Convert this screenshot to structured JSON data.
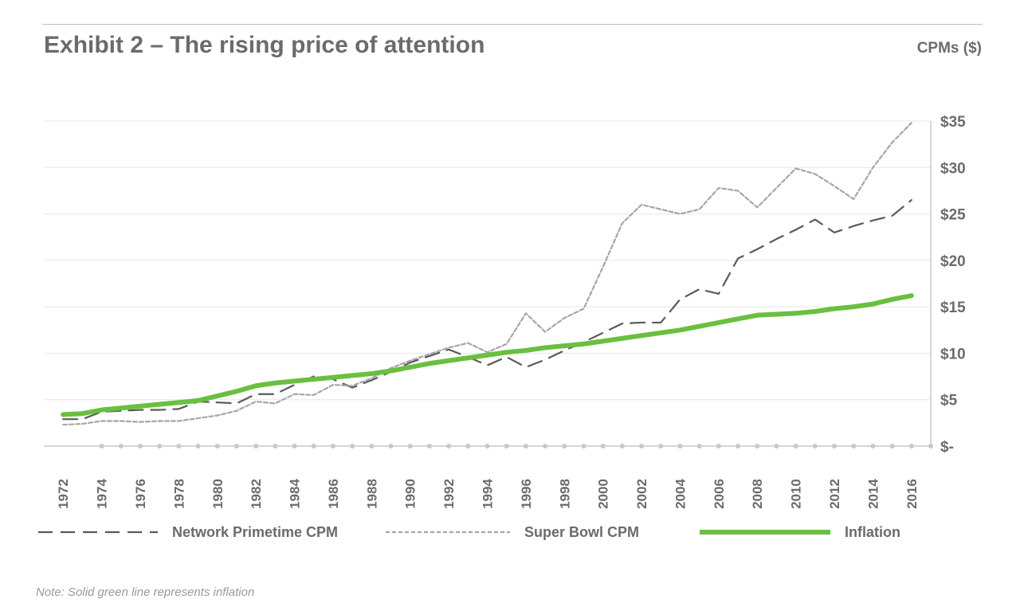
{
  "header": {
    "title": "Exhibit 2 – The rising price of attention",
    "unit": "CPMs ($)"
  },
  "note": "Note: Solid green line represents inflation",
  "chart_data": {
    "type": "line",
    "title": "Exhibit 2 – The rising price of attention",
    "ylabel": "CPMs ($)",
    "xlabel": "",
    "ylim": [
      0,
      35
    ],
    "y_ticks": [
      0,
      5,
      10,
      15,
      20,
      25,
      30,
      35
    ],
    "y_tick_labels": [
      "$-",
      "$5",
      "$10",
      "$15",
      "$20",
      "$25",
      "$30",
      "$35"
    ],
    "y_axis_side": "right",
    "grid": true,
    "legend_position": "bottom",
    "x_tick_labels": [
      "1972",
      "1974",
      "1976",
      "1978",
      "1980",
      "1982",
      "1984",
      "1986",
      "1988",
      "1990",
      "1992",
      "1994",
      "1996",
      "1998",
      "2000",
      "2002",
      "2004",
      "2006",
      "2008",
      "2010",
      "2012",
      "2014",
      "2016"
    ],
    "x": [
      1972,
      1973,
      1974,
      1975,
      1976,
      1977,
      1978,
      1979,
      1980,
      1981,
      1982,
      1983,
      1984,
      1985,
      1986,
      1987,
      1988,
      1989,
      1990,
      1991,
      1992,
      1993,
      1994,
      1995,
      1996,
      1997,
      1998,
      1999,
      2000,
      2001,
      2002,
      2003,
      2004,
      2005,
      2006,
      2007,
      2008,
      2009,
      2010,
      2011,
      2012,
      2013,
      2014,
      2015,
      2016
    ],
    "series": [
      {
        "name": "Network Primetime CPM",
        "color": "#5a5a5a",
        "style": "dashed",
        "values": [
          2.9,
          2.9,
          3.7,
          3.8,
          3.9,
          3.9,
          4.0,
          4.8,
          4.7,
          4.6,
          5.6,
          5.6,
          6.6,
          7.5,
          7.2,
          6.3,
          7.1,
          8.0,
          9.0,
          9.7,
          10.4,
          9.6,
          8.7,
          9.6,
          8.5,
          9.3,
          10.3,
          11.2,
          12.2,
          13.2,
          13.3,
          13.3,
          15.8,
          16.9,
          16.4,
          20.2,
          21.2,
          22.3,
          23.3,
          24.4,
          23.0,
          23.7,
          24.3,
          24.8,
          26.5
        ]
      },
      {
        "name": "Super Bowl CPM",
        "color": "#a6a6a6",
        "style": "dotted",
        "values": [
          2.3,
          2.4,
          2.7,
          2.7,
          2.6,
          2.7,
          2.7,
          3.0,
          3.3,
          3.8,
          4.8,
          4.6,
          5.6,
          5.5,
          6.6,
          6.5,
          7.3,
          8.4,
          9.2,
          9.9,
          10.6,
          11.1,
          10.1,
          11.0,
          14.3,
          12.3,
          13.8,
          14.8,
          19.3,
          24.0,
          26.0,
          25.5,
          25.0,
          25.5,
          27.8,
          27.5,
          25.7,
          27.8,
          29.9,
          29.3,
          28.0,
          26.6,
          30.0,
          32.7,
          34.8
        ]
      },
      {
        "name": "Inflation",
        "color": "#6abf3f",
        "style": "solid",
        "values": [
          3.4,
          3.5,
          3.9,
          4.1,
          4.3,
          4.5,
          4.7,
          4.9,
          5.4,
          5.9,
          6.5,
          6.8,
          7.0,
          7.2,
          7.4,
          7.6,
          7.8,
          8.1,
          8.5,
          8.9,
          9.2,
          9.5,
          9.8,
          10.1,
          10.3,
          10.6,
          10.8,
          11.0,
          11.3,
          11.6,
          11.9,
          12.2,
          12.5,
          12.9,
          13.3,
          13.7,
          14.1,
          14.2,
          14.3,
          14.5,
          14.8,
          15.0,
          15.3,
          15.8,
          16.2
        ]
      }
    ]
  }
}
